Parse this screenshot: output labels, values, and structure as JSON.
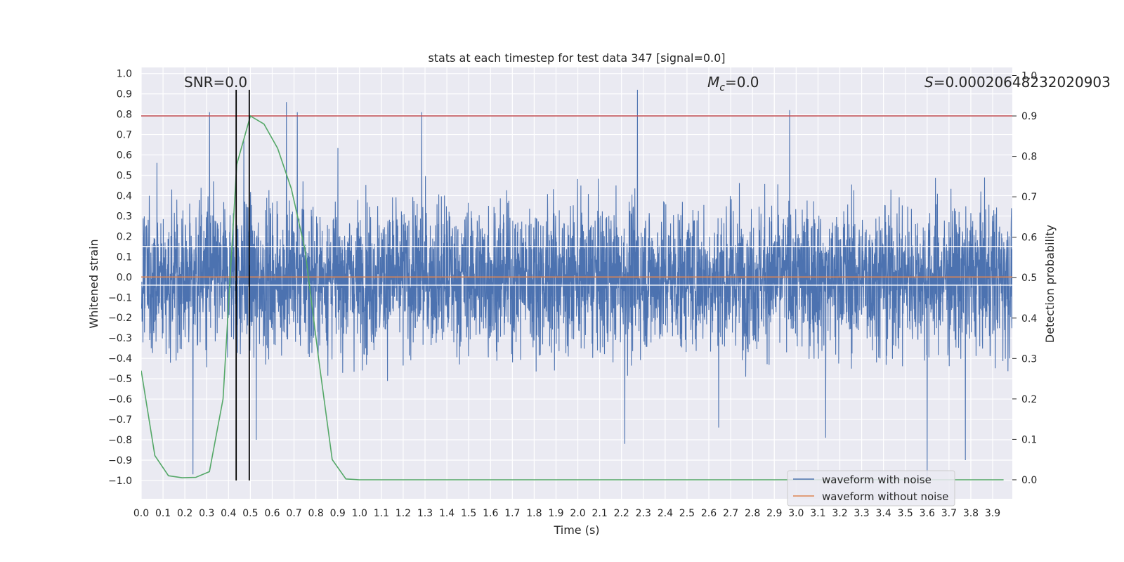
{
  "chart_data": {
    "type": "line",
    "title": "stats at each timestep for test data 347 [signal=0.0]",
    "xlabel": "Time (s)",
    "ylabel": "Whitened strain",
    "y2label": "Detection probability",
    "xlim": [
      0.0,
      3.99
    ],
    "ylim": [
      -1.09,
      1.03
    ],
    "y2lim": [
      -0.047,
      1.02
    ],
    "x_ticks": [
      "0.0",
      "0.1",
      "0.2",
      "0.3",
      "0.4",
      "0.5",
      "0.6",
      "0.7",
      "0.8",
      "0.9",
      "1.0",
      "1.1",
      "1.2",
      "1.3",
      "1.4",
      "1.5",
      "1.6",
      "1.7",
      "1.8",
      "1.9",
      "2.0",
      "2.1",
      "2.2",
      "2.3",
      "2.4",
      "2.5",
      "2.6",
      "2.7",
      "2.8",
      "2.9",
      "3.0",
      "3.1",
      "3.2",
      "3.3",
      "3.4",
      "3.5",
      "3.6",
      "3.7",
      "3.8",
      "3.9"
    ],
    "y_ticks": [
      "1.0",
      "0.9",
      "0.8",
      "0.7",
      "0.6",
      "0.5",
      "0.4",
      "0.3",
      "0.2",
      "0.1",
      "0.0",
      "-0.1",
      "-0.2",
      "-0.3",
      "-0.4",
      "-0.5",
      "-0.6",
      "-0.7",
      "-0.8",
      "-0.9",
      "-1.0"
    ],
    "y2_ticks": [
      "1.0",
      "0.9",
      "0.8",
      "0.7",
      "0.6",
      "0.5",
      "0.4",
      "0.3",
      "0.2",
      "0.1",
      "0.0"
    ],
    "annotations": {
      "snr": "SNR=0.0",
      "mc_symbol": "M",
      "mc_sub": "c",
      "mc_value": "=0.0",
      "s_symbol": "S",
      "s_value": "=0.00020648232020903"
    },
    "grid": true,
    "legend": {
      "placement": "bottom-right",
      "entries": [
        "waveform with noise",
        "waveform without noise"
      ]
    },
    "series": [
      {
        "name": "waveform with noise",
        "color": "#4c72b0",
        "sample_rate": 1000,
        "noise_std": 0.18,
        "envelope_peaks": [
          {
            "x": 0.237,
            "y": -0.97
          },
          {
            "x": 0.313,
            "y": 0.81
          },
          {
            "x": 0.47,
            "y": 0.67
          },
          {
            "x": 0.527,
            "y": -0.8
          },
          {
            "x": 0.665,
            "y": 0.86
          },
          {
            "x": 0.715,
            "y": 0.81
          },
          {
            "x": 1.285,
            "y": 0.81
          },
          {
            "x": 2.273,
            "y": 0.92
          },
          {
            "x": 2.215,
            "y": -0.82
          },
          {
            "x": 2.97,
            "y": 0.82
          },
          {
            "x": 3.6,
            "y": -1.0
          },
          {
            "x": 3.775,
            "y": -0.9
          },
          {
            "x": 3.135,
            "y": -0.79
          },
          {
            "x": 2.645,
            "y": -0.74
          }
        ]
      },
      {
        "name": "waveform without noise",
        "color": "#dd8452",
        "y": 0.0
      },
      {
        "name": "detection probability",
        "color": "#55a868",
        "axis": "right",
        "x": [
          0.0,
          0.0625,
          0.125,
          0.1875,
          0.25,
          0.3125,
          0.375,
          0.4375,
          0.5,
          0.5625,
          0.625,
          0.6875,
          0.75,
          0.8125,
          0.875,
          0.9375,
          1.0,
          1.0625,
          1.125,
          1.25,
          1.5,
          2.0,
          2.5,
          3.0,
          3.5,
          3.95
        ],
        "y": [
          0.27,
          0.06,
          0.01,
          0.005,
          0.006,
          0.02,
          0.2,
          0.78,
          0.9,
          0.88,
          0.82,
          0.72,
          0.57,
          0.3,
          0.05,
          0.002,
          0.0,
          0.0,
          0.0,
          0.0,
          0.0,
          0.0,
          0.0,
          0.0,
          0.0,
          0.0
        ]
      }
    ],
    "threshold": {
      "axis": "right",
      "value": 0.9,
      "color": "#c44e52"
    },
    "markers": {
      "x": [
        0.435,
        0.495
      ],
      "color": "#000000"
    },
    "bands": [
      {
        "y": 0.15,
        "color": "#ffffff"
      },
      {
        "y": -0.04,
        "color": "#ffffff"
      }
    ]
  }
}
